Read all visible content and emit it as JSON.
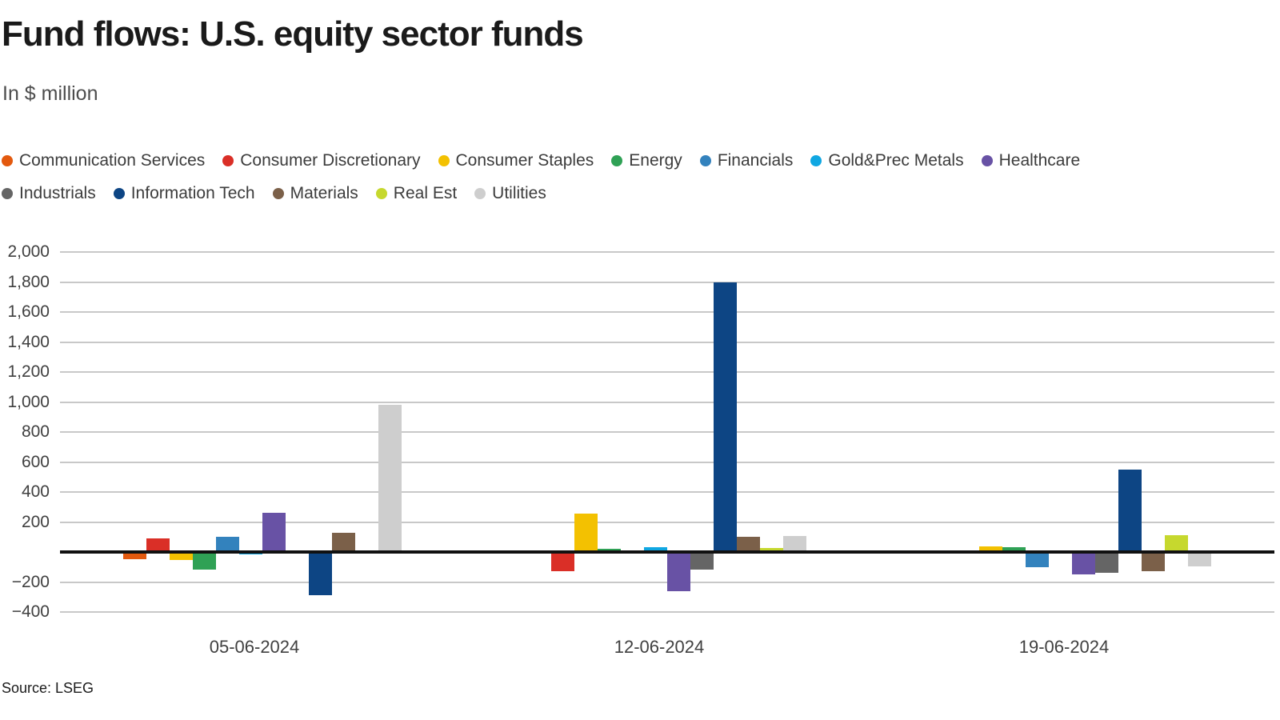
{
  "title": "Fund flows: U.S. equity sector funds",
  "subtitle": "In $ million",
  "source": "Source: LSEG",
  "chart_data": {
    "type": "bar",
    "title": "Fund flows: U.S. equity sector funds",
    "subtitle": "In $ million",
    "source": "Source: LSEG",
    "categories": [
      "05-06-2024",
      "12-06-2024",
      "19-06-2024"
    ],
    "series": [
      {
        "name": "Communication Services",
        "color": "#e3590e",
        "values": [
          -50,
          -10,
          0
        ]
      },
      {
        "name": "Consumer Discretionary",
        "color": "#da2f27",
        "values": [
          90,
          -130,
          10
        ]
      },
      {
        "name": "Consumer Staples",
        "color": "#f3c101",
        "values": [
          -55,
          255,
          40
        ]
      },
      {
        "name": "Energy",
        "color": "#2fa155",
        "values": [
          -115,
          20,
          30
        ]
      },
      {
        "name": "Financials",
        "color": "#3382bd",
        "values": [
          100,
          10,
          -100
        ]
      },
      {
        "name": "Gold&Prec Metals",
        "color": "#10a7e2",
        "values": [
          -15,
          30,
          0
        ]
      },
      {
        "name": "Healthcare",
        "color": "#6852a5",
        "values": [
          260,
          -260,
          -150
        ]
      },
      {
        "name": "Industrials",
        "color": "#656565",
        "values": [
          0,
          -115,
          -140
        ]
      },
      {
        "name": "Information Tech",
        "color": "#0d4584",
        "values": [
          -290,
          1800,
          550
        ]
      },
      {
        "name": "Materials",
        "color": "#7b6049",
        "values": [
          130,
          100,
          -130
        ]
      },
      {
        "name": "Real Est",
        "color": "#c6d82e",
        "values": [
          8,
          25,
          110
        ]
      },
      {
        "name": "Utilities",
        "color": "#cecece",
        "values": [
          980,
          105,
          -95
        ]
      }
    ],
    "ylim": [
      -400,
      2000
    ],
    "ytick_step": 200,
    "yticks": [
      {
        "value": 2000,
        "label": "2,000"
      },
      {
        "value": 1800,
        "label": "1,800"
      },
      {
        "value": 1600,
        "label": "1,600"
      },
      {
        "value": 1400,
        "label": "1,400"
      },
      {
        "value": 1200,
        "label": "1,200"
      },
      {
        "value": 1000,
        "label": "1,000"
      },
      {
        "value": 800,
        "label": "800"
      },
      {
        "value": 600,
        "label": "600"
      },
      {
        "value": 400,
        "label": "400"
      },
      {
        "value": 200,
        "label": "200"
      },
      {
        "value": -200,
        "label": "−200"
      },
      {
        "value": -400,
        "label": "−400"
      }
    ],
    "grid": true,
    "legend_position": "top",
    "zero_line": true
  }
}
